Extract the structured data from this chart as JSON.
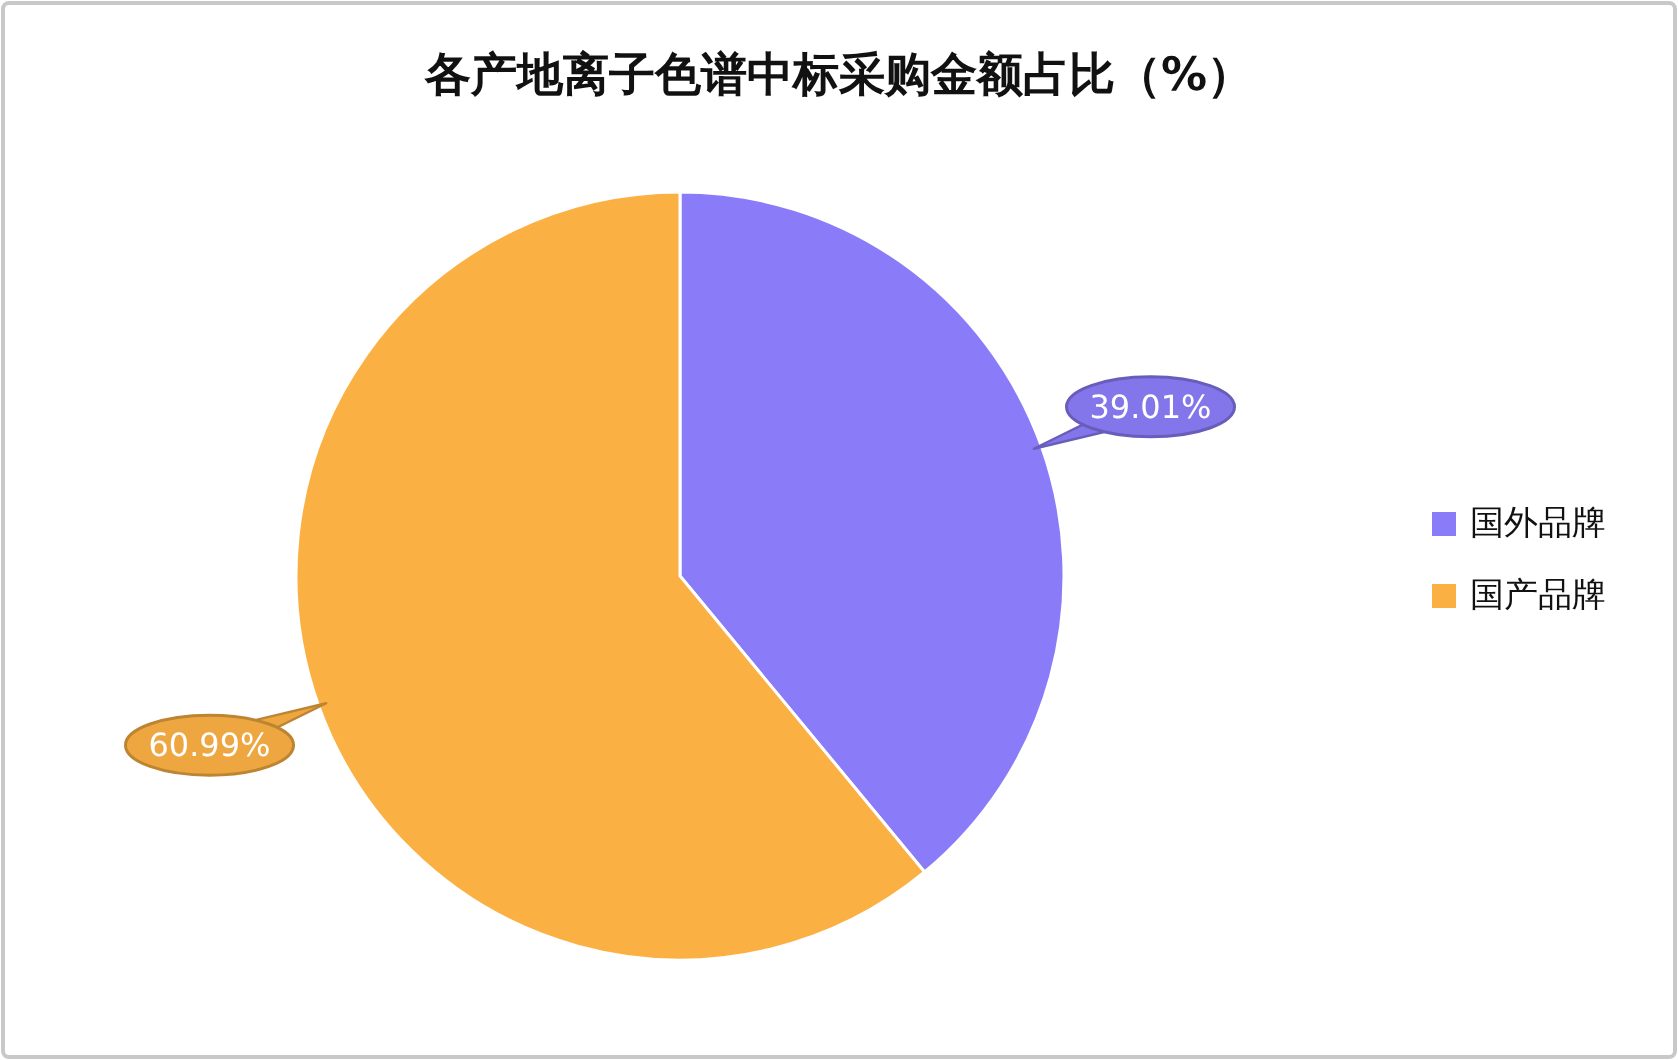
{
  "chart_data": {
    "type": "pie",
    "title": "各产地离子色谱中标采购金额占比（%）",
    "categories": [
      "国外品牌",
      "国产品牌"
    ],
    "values": [
      39.01,
      60.99
    ],
    "colors": [
      "#8a7cf8",
      "#fbb043"
    ],
    "value_labels": [
      "39.01%",
      "60.99%"
    ],
    "legend": "right"
  }
}
